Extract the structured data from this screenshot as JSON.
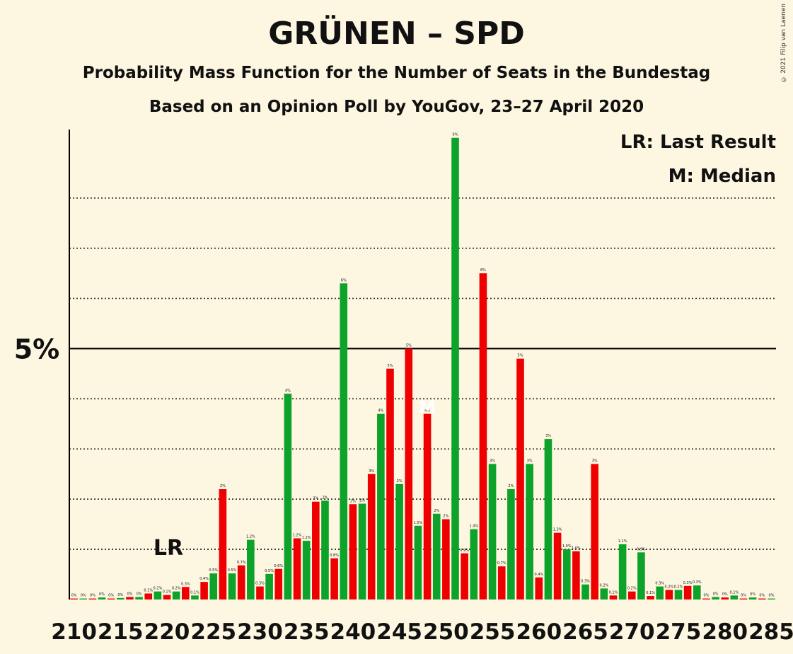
{
  "title": "GRÜNEN – SPD",
  "subtitle": "Probability Mass Function for the Number of Seats in the Bundestag",
  "subtitle2": "Based on an Opinion Poll by YouGov, 23–27 April 2020",
  "copyright": "© 2021 Filip van Laenen",
  "legend": {
    "last_result": "LR: Last Result",
    "median": "M: Median"
  },
  "colors": {
    "green": "#0da32a",
    "red": "#ee0000",
    "background": "#fdf6e0"
  },
  "chart_data": {
    "type": "bar",
    "x_start": 210,
    "x_end": 285,
    "x_tick_labels": [
      "210",
      "215",
      "220",
      "225",
      "230",
      "235",
      "240",
      "245",
      "250",
      "255",
      "260",
      "265",
      "270",
      "275",
      "280",
      "285"
    ],
    "y_tick_label": "5%",
    "y_major": 5,
    "y_gridlines": [
      1,
      2,
      3,
      4,
      6,
      7,
      8
    ],
    "ylim": [
      0,
      9.4
    ],
    "last_result_seat": 220,
    "last_result_label": "LR",
    "median_seat": 248,
    "median_label": "M",
    "seats": [
      210,
      211,
      212,
      213,
      214,
      215,
      216,
      217,
      218,
      219,
      220,
      221,
      222,
      223,
      224,
      225,
      226,
      227,
      228,
      229,
      230,
      231,
      232,
      233,
      234,
      235,
      236,
      237,
      238,
      239,
      240,
      241,
      242,
      243,
      244,
      245,
      246,
      247,
      248,
      249,
      250,
      251,
      252,
      253,
      254,
      255,
      256,
      257,
      258,
      259,
      260,
      261,
      262,
      263,
      264,
      265,
      266,
      267,
      268,
      269,
      270,
      271,
      272,
      273,
      274,
      275,
      276,
      277,
      278,
      279,
      280,
      281,
      282,
      283,
      284,
      285
    ],
    "values": [
      0.02,
      0.02,
      0.02,
      0.04,
      0.02,
      0.03,
      0.05,
      0.05,
      0.12,
      0.16,
      0.09,
      0.16,
      0.25,
      0.08,
      0.35,
      0.52,
      2.2,
      0.52,
      0.68,
      1.19,
      0.26,
      0.51,
      0.61,
      4.1,
      1.22,
      1.17,
      1.95,
      1.97,
      0.82,
      6.3,
      1.9,
      1.91,
      2.5,
      3.7,
      4.6,
      2.3,
      5.0,
      1.47,
      3.7,
      1.71,
      1.6,
      9.2,
      0.92,
      1.4,
      6.5,
      2.7,
      0.66,
      2.2,
      4.8,
      2.7,
      0.44,
      3.2,
      1.33,
      1.0,
      0.96,
      0.3,
      2.7,
      0.22,
      0.08,
      1.1,
      0.16,
      0.94,
      0.07,
      0.26,
      0.19,
      0.19,
      0.27,
      0.28,
      0.02,
      0.05,
      0.04,
      0.08,
      0.02,
      0.04,
      0.02,
      0.02
    ],
    "labels": [
      "0%",
      "0%",
      "0%",
      "0%",
      "0%",
      "0%",
      "0%",
      "0%",
      "0.1%",
      "0.2%",
      "0.1%",
      "0.2%",
      "0.3%",
      "0.1%",
      "0.4%",
      "0.5%",
      "2%",
      "0.5%",
      "0.7%",
      "1.2%",
      "0.3%",
      "0.5%",
      "0.6%",
      "4%",
      "1.2%",
      "1.2%",
      "2%",
      "2%",
      "0.8%",
      "6%",
      "2%",
      "2%",
      "3%",
      "4%",
      "5%",
      "2%",
      "5%",
      "1.5%",
      "4%",
      "2%",
      "2%",
      "9%",
      "0.9%",
      "1.4%",
      "6%",
      "3%",
      "0.7%",
      "2%",
      "5%",
      "3%",
      "0.4%",
      "3%",
      "1.3%",
      "1.0%",
      "1.0%",
      "0.3%",
      "3%",
      "0.2%",
      "0.1%",
      "1.1%",
      "0.2%",
      "0.9%",
      "0.1%",
      "0.3%",
      "0.2%",
      "0.2%",
      "0.3%",
      "0.3%",
      "0%",
      "0%",
      "0%",
      "0.1%",
      "0%",
      "0%",
      "0%",
      "0%"
    ]
  }
}
